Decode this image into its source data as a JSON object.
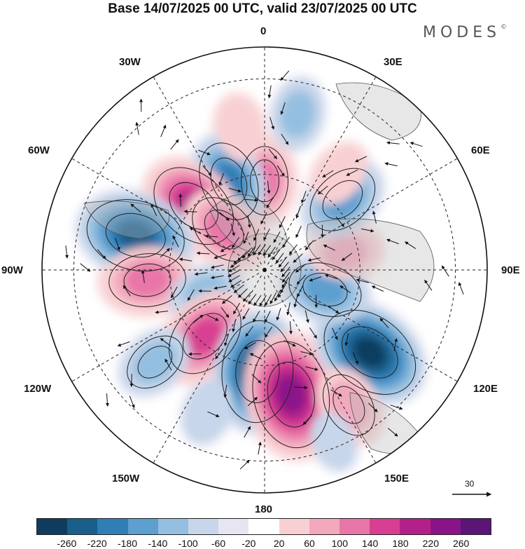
{
  "title": "Base 14/07/2025 00 UTC, valid 23/07/2025 00 UTC",
  "brand": "MODES",
  "brand_mark": "©",
  "longitude_labels": {
    "lon_0": "0",
    "lon_30e": "30E",
    "lon_60e": "60E",
    "lon_90e": "90E",
    "lon_120e": "120E",
    "lon_150e": "150E",
    "lon_180": "180",
    "lon_150w": "150W",
    "lon_120w": "120W",
    "lon_90w": "90W",
    "lon_60w": "60W",
    "lon_30w": "30W"
  },
  "vector_reference": {
    "value": "30"
  },
  "colorbar": {
    "ticks": [
      "-260",
      "-220",
      "-180",
      "-140",
      "-100",
      "-60",
      "-20",
      "20",
      "60",
      "100",
      "140",
      "180",
      "220",
      "260"
    ],
    "colors": [
      "#0f3c5e",
      "#1a5f8c",
      "#2f7fb6",
      "#5d9fcf",
      "#95bfe0",
      "#c7d6ea",
      "#e6e6f2",
      "#ffffff",
      "#f8d0d3",
      "#f2a8bd",
      "#e976a8",
      "#d83f92",
      "#b4208a",
      "#8a138a",
      "#5a1577"
    ]
  },
  "anomaly_centers": [
    {
      "lon": 0,
      "lat": 62,
      "value": 120
    },
    {
      "lon": -22,
      "lat": 60,
      "value": -160
    },
    {
      "lon": -48,
      "lat": 60,
      "value": 200
    },
    {
      "lon": -45,
      "lat": 72,
      "value": 140
    },
    {
      "lon": -75,
      "lat": 48,
      "value": -230
    },
    {
      "lon": -95,
      "lat": 53,
      "value": 150
    },
    {
      "lon": -112,
      "lat": 70,
      "value": -90
    },
    {
      "lon": -138,
      "lat": 62,
      "value": 180
    },
    {
      "lon": -176,
      "lat": 58,
      "value": -240
    },
    {
      "lon": 168,
      "lat": 50,
      "value": 260
    },
    {
      "lon": 128,
      "lat": 48,
      "value": -240
    },
    {
      "lon": 108,
      "lat": 70,
      "value": -140
    },
    {
      "lon": 78,
      "lat": 64,
      "value": 80
    },
    {
      "lon": 48,
      "lat": 57,
      "value": -140
    },
    {
      "lon": 38,
      "lat": 52,
      "value": 60
    },
    {
      "lon": -130,
      "lat": 45,
      "value": -100
    },
    {
      "lon": 148,
      "lat": 40,
      "value": 110
    },
    {
      "lon": 12,
      "lat": 40,
      "value": -80
    },
    {
      "lon": -158,
      "lat": 42,
      "value": -60
    },
    {
      "lon": 158,
      "lat": 32,
      "value": -40
    },
    {
      "lon": -10,
      "lat": 45,
      "value": 60
    }
  ]
}
